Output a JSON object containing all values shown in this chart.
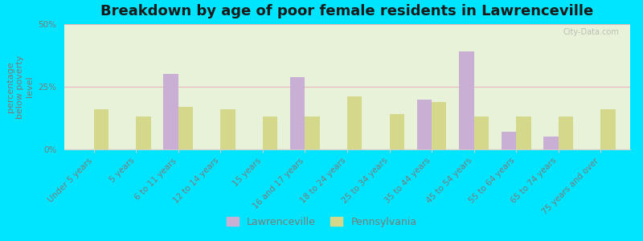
{
  "title": "Breakdown by age of poor female residents in Lawrenceville",
  "ylabel": "percentage\nbelow poverty\nlevel",
  "categories": [
    "Under 5 years",
    "5 years",
    "6 to 11 years",
    "12 to 14 years",
    "15 years",
    "16 and 17 years",
    "18 to 24 years",
    "25 to 34 years",
    "35 to 44 years",
    "45 to 54 years",
    "55 to 64 years",
    "65 to 74 years",
    "75 years and over"
  ],
  "lawrenceville": [
    0,
    0,
    30,
    0,
    0,
    29,
    0,
    0,
    20,
    39,
    7,
    5,
    0
  ],
  "pennsylvania": [
    16,
    13,
    17,
    16,
    13,
    13,
    21,
    14,
    19,
    13,
    13,
    13,
    16
  ],
  "lawrenceville_color": "#c9afd4",
  "pennsylvania_color": "#d4d88a",
  "background_color_plot_top": "#e8f2d8",
  "background_color_plot_bottom": "#f5faea",
  "background_color_fig": "#00e5ff",
  "ylim": [
    0,
    50
  ],
  "yticks": [
    0,
    25,
    50
  ],
  "ytick_labels": [
    "0%",
    "25%",
    "50%"
  ],
  "bar_width": 0.35,
  "title_fontsize": 13,
  "axis_label_fontsize": 8,
  "tick_label_fontsize": 7.5,
  "tick_label_color": "#7a7a7a",
  "legend_labels": [
    "Lawrenceville",
    "Pennsylvania"
  ],
  "watermark": "City-Data.com",
  "grid_color": "#e8b8c0",
  "spine_color": "#cccccc"
}
